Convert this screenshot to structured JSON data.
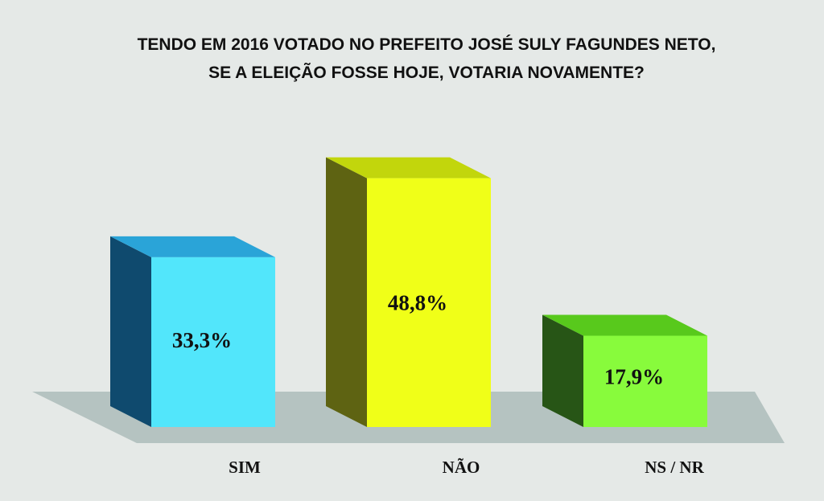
{
  "chart_data": {
    "type": "bar",
    "title_lines": [
      "TENDO EM 2016 VOTADO NO PREFEITO JOSÉ SULY FAGUNDES NETO,",
      "SE A ELEIÇÃO FOSSE HOJE, VOTARIA NOVAMENTE?"
    ],
    "categories": [
      "SIM",
      "NÃO",
      "NS / NR"
    ],
    "values": [
      33.3,
      48.8,
      17.9
    ],
    "value_labels": [
      "33,3%",
      "48,8%",
      "17,9%"
    ],
    "xlabel": "",
    "ylabel": "",
    "ylim": [
      0,
      55
    ],
    "grid": false,
    "legend": "none",
    "style_3d": true
  },
  "colors": {
    "background": "#e5e9e7",
    "floor": "#b5c3c1",
    "bars": [
      {
        "front": "#52e6fb",
        "side": "#0f4a6e",
        "top": "#2aa4d8"
      },
      {
        "front": "#f0ff18",
        "side": "#5e6312",
        "top": "#c2d60c"
      },
      {
        "front": "#88fb3c",
        "side": "#275516",
        "top": "#58c91c"
      }
    ]
  }
}
